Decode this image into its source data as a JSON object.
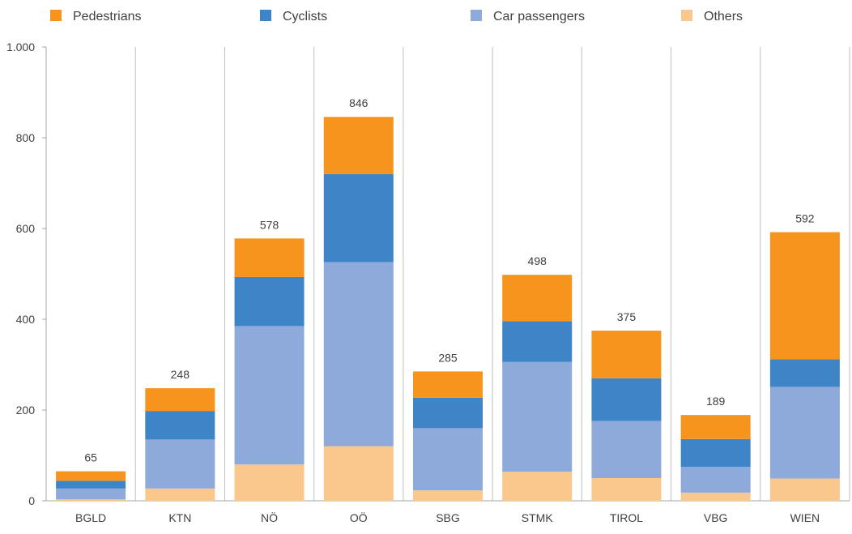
{
  "chart_data": {
    "type": "bar",
    "stacked": true,
    "title": "",
    "xlabel": "",
    "ylabel": "",
    "categories": [
      "BGLD",
      "KTN",
      "NÖ",
      "OÖ",
      "SBG",
      "STMK",
      "TIROL",
      "VBG",
      "WIEN"
    ],
    "totals": [
      65,
      248,
      578,
      846,
      285,
      498,
      375,
      189,
      592
    ],
    "total_labels": [
      "65",
      "248",
      "578",
      "846",
      "285",
      "498",
      "375",
      "189",
      "592"
    ],
    "series": [
      {
        "name": "Others",
        "color": "#FAC78D",
        "values": [
          3,
          27,
          80,
          120,
          23,
          64,
          50,
          18,
          49
        ]
      },
      {
        "name": "Car passengers",
        "color": "#8EAADA",
        "values": [
          24,
          108,
          305,
          406,
          137,
          242,
          126,
          57,
          202
        ]
      },
      {
        "name": "Cyclists",
        "color": "#3D85C6",
        "values": [
          17,
          63,
          108,
          194,
          67,
          90,
          94,
          61,
          61
        ]
      },
      {
        "name": "Pedestrians",
        "color": "#F7941D",
        "values": [
          21,
          50,
          85,
          126,
          58,
          102,
          105,
          53,
          280
        ]
      }
    ],
    "legend_order": [
      "Pedestrians",
      "Cyclists",
      "Car passengers",
      "Others"
    ],
    "legend_position": "top",
    "ylim": [
      0,
      1000
    ],
    "yticks": [
      0,
      200,
      400,
      600,
      800,
      1000
    ],
    "ytick_labels": [
      "0",
      "200",
      "400",
      "600",
      "800",
      "1.000"
    ],
    "grid": "vertical",
    "colors": {
      "grid": "#BFBFBF",
      "axis": "#A6A6A6",
      "text": "#404040"
    }
  }
}
